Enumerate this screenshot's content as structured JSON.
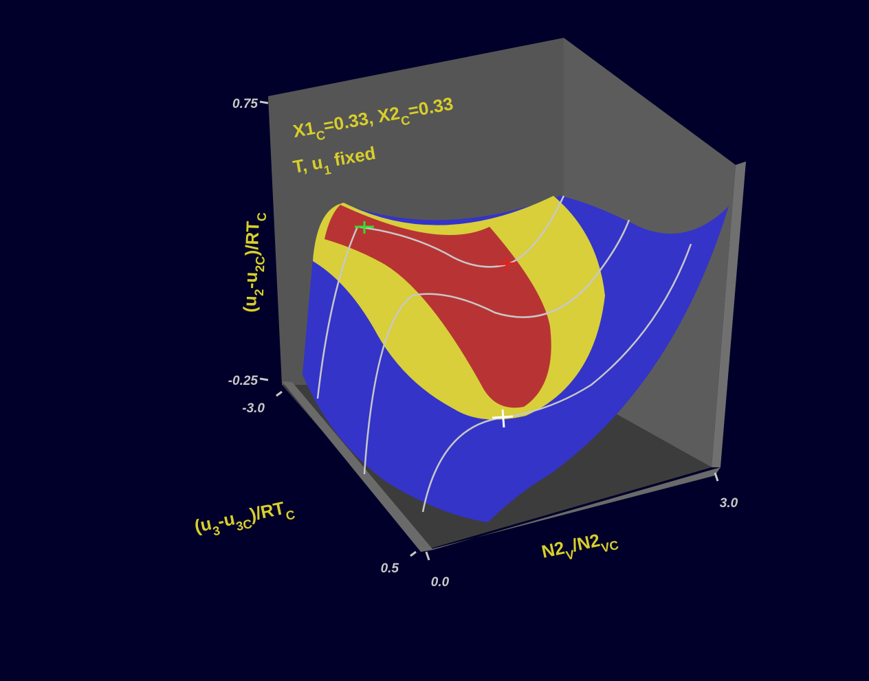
{
  "chart_data": {
    "type": "surface3d",
    "annotations": [
      [
        "X1",
        "C",
        "=0.33,  X2",
        "C",
        "=0.33"
      ],
      [
        "T,  u",
        "1",
        "  fixed"
      ]
    ],
    "ylabel": [
      "(u",
      "2",
      "-u",
      "2C",
      ")/RT",
      "C"
    ],
    "zlabel": [
      "(u",
      "3",
      "-u",
      "3C",
      ")/RT",
      "C"
    ],
    "xlabel": [
      "N2",
      "V",
      "/N2",
      "VC"
    ],
    "ylim": [
      -0.25,
      0.75
    ],
    "yticks": [
      -0.25,
      0.75
    ],
    "zlim": [
      -3,
      0.5
    ],
    "zticks": [
      {
        "value": -3,
        "label": "-3.0"
      },
      {
        "value": 0.5,
        "label": "0.5"
      }
    ],
    "xlim": [
      0,
      3
    ],
    "xticks": [
      {
        "value": 0,
        "label": "0.0"
      },
      {
        "value": 3,
        "label": "3.0"
      }
    ]
  }
}
